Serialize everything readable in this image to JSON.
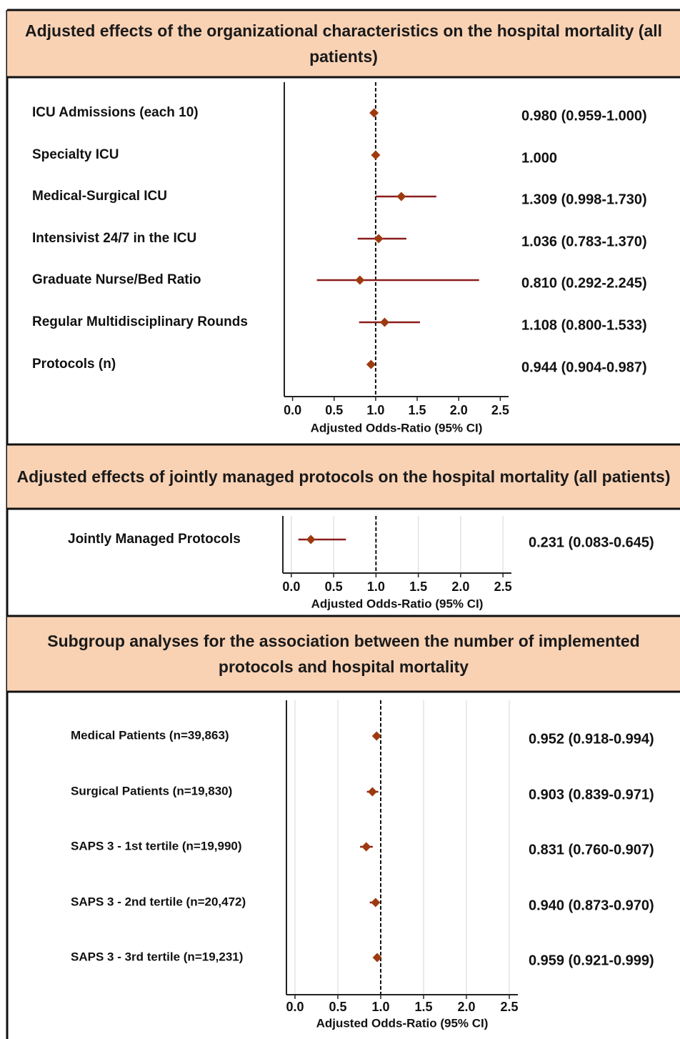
{
  "chart_data": [
    {
      "type": "forest",
      "title": "Adjusted effects of the organizational characteristics on the hospital mortality (all patients)",
      "categories": [
        "ICU Admissions (each 10)",
        "Specialty ICU",
        "Medical-Surgical ICU",
        "Intensivist 24/7 in the ICU",
        "Graduate Nurse/Bed Ratio",
        "Regular Multidisciplinary Rounds",
        "Protocols (n)"
      ],
      "values": [
        0.98,
        1.0,
        1.309,
        1.036,
        0.81,
        1.108,
        0.944
      ],
      "ci_low": [
        0.959,
        null,
        0.998,
        0.783,
        0.292,
        0.8,
        0.904
      ],
      "ci_high": [
        1.0,
        null,
        1.73,
        1.37,
        2.245,
        1.533,
        0.987
      ],
      "value_labels": [
        "0.980 (0.959-1.000)",
        "1.000",
        "1.309 (0.998-1.730)",
        "1.036 (0.783-1.370)",
        "0.810 (0.292-2.245)",
        "1.108 (0.800-1.533)",
        "0.944 (0.904-0.987)"
      ],
      "xlabel": "Adjusted Odds-Ratio (95% CI)",
      "xlim": [
        -0.1,
        2.6
      ],
      "xticks": [
        {
          "value": 0,
          "label": "0.0"
        },
        0.5,
        {
          "value": 1,
          "label": "1.0"
        },
        1.5,
        {
          "value": 2,
          "label": "2.0"
        },
        2.5
      ],
      "ref_line": 1,
      "grid": false,
      "color": "#9e3a10",
      "line_color": "#8b1c1c"
    },
    {
      "type": "forest",
      "title": "Adjusted effects of jointly managed protocols on the hospital mortality (all patients)",
      "categories": [
        "Jointly Managed Protocols"
      ],
      "values": [
        0.231
      ],
      "ci_low": [
        0.083
      ],
      "ci_high": [
        0.645
      ],
      "value_labels": [
        "0.231 (0.083-0.645)"
      ],
      "xlabel": "Adjusted Odds-Ratio (95% CI)",
      "xlim": [
        -0.1,
        2.6
      ],
      "xticks": [
        {
          "value": 0,
          "label": "0.0"
        },
        0.5,
        {
          "value": 1,
          "label": "1.0"
        },
        1.5,
        {
          "value": 2,
          "label": "2.0"
        },
        2.5
      ],
      "ref_line": 1,
      "grid": true,
      "color": "#9e3a10",
      "line_color": "#8b1c1c"
    },
    {
      "type": "forest",
      "title": "Subgroup analyses for the association between the number of implemented protocols and hospital mortality",
      "categories": [
        "Medical Patients (n=39,863)",
        "Surgical Patients (n=19,830)",
        "SAPS 3 - 1st tertile (n=19,990)",
        "SAPS 3 - 2nd tertile (n=20,472)",
        "SAPS 3 - 3rd tertile (n=19,231)"
      ],
      "values": [
        0.952,
        0.903,
        0.831,
        0.94,
        0.959
      ],
      "ci_low": [
        0.918,
        0.839,
        0.76,
        0.873,
        0.921
      ],
      "ci_high": [
        0.994,
        0.971,
        0.907,
        0.97,
        0.999
      ],
      "value_labels": [
        "0.952 (0.918-0.994)",
        "0.903 (0.839-0.971)",
        "0.831 (0.760-0.907)",
        "0.940 (0.873-0.970)",
        "0.959 (0.921-0.999)"
      ],
      "xlabel": "Adjusted Odds-Ratio (95% CI)",
      "xlim": [
        -0.1,
        2.6
      ],
      "xticks": [
        {
          "value": 0,
          "label": "0.0"
        },
        0.5,
        {
          "value": 1,
          "label": "1.0"
        },
        1.5,
        {
          "value": 2,
          "label": "2.0"
        },
        2.5
      ],
      "ref_line": 1,
      "grid": true,
      "color": "#9e3a10",
      "line_color": "#8b1c1c"
    }
  ]
}
